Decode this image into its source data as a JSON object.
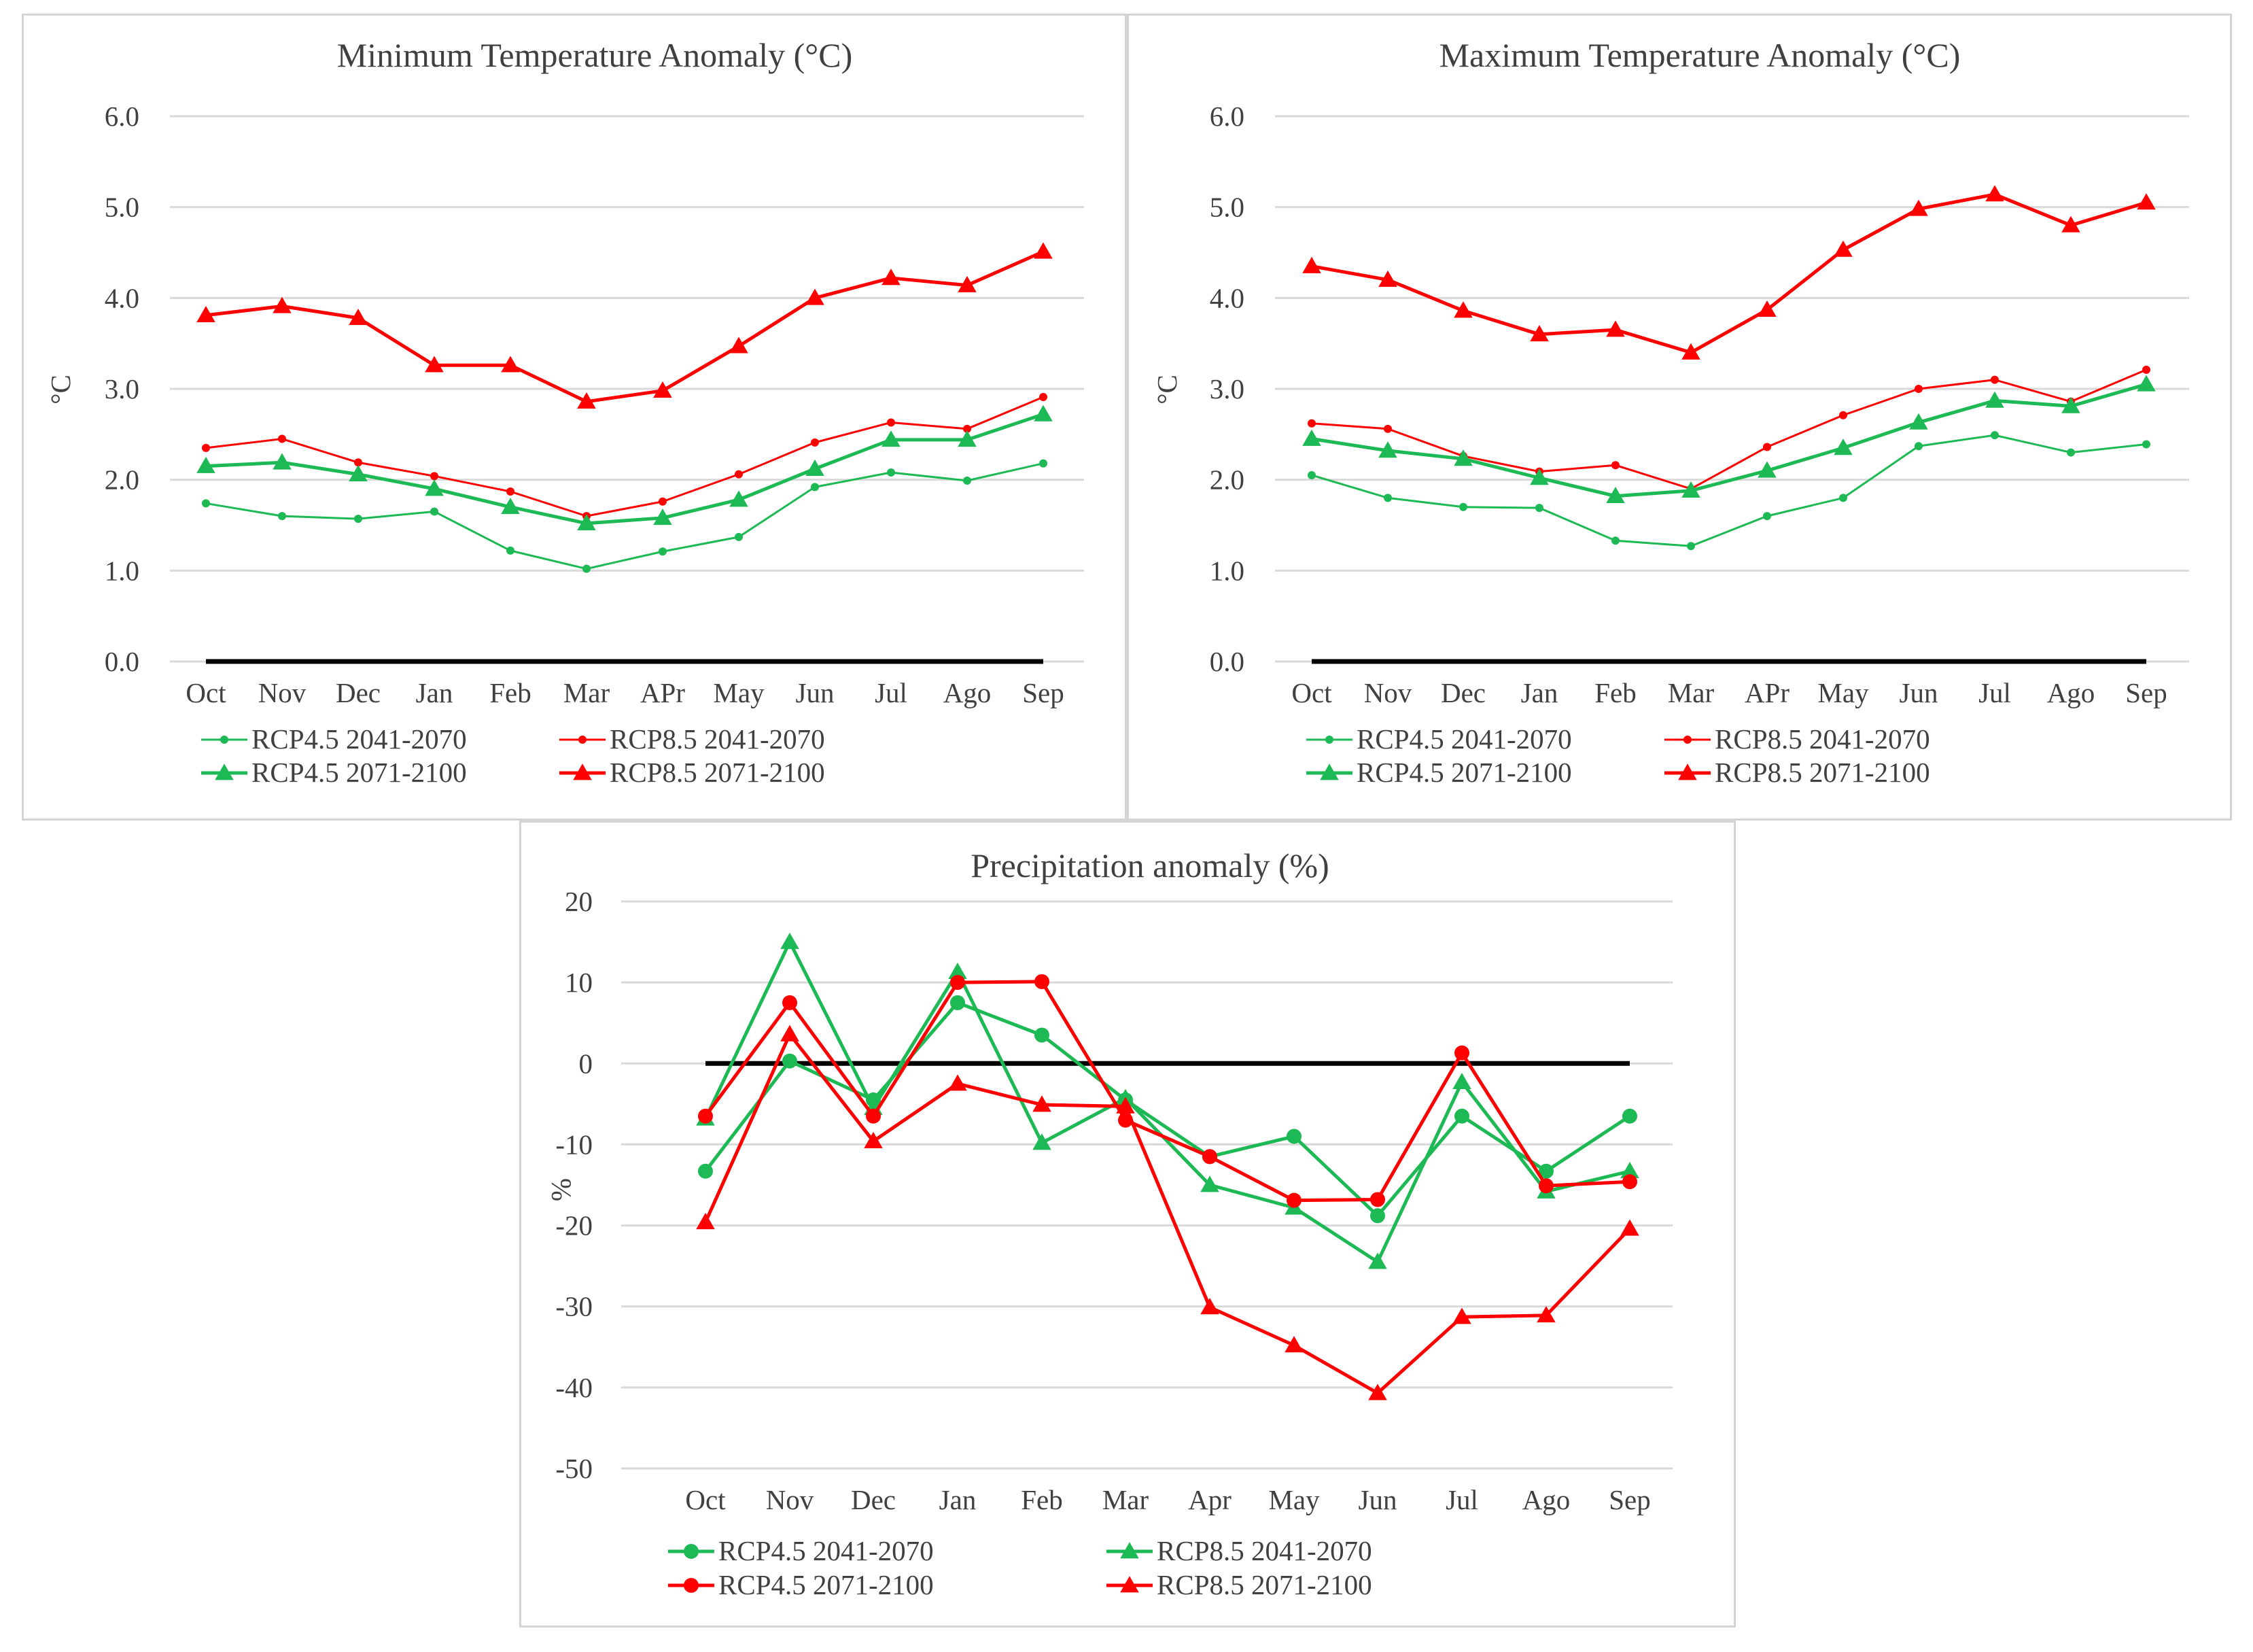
{
  "charts": [
    {
      "id": "min",
      "type": "line",
      "title": "Minimum Temperature Anomaly (°C)",
      "ylabel": "°C",
      "ylim": [
        0,
        6
      ],
      "ytick_labels": [
        "0.0",
        "1.0",
        "2.0",
        "3.0",
        "4.0",
        "5.0",
        "6.0"
      ],
      "categories": [
        "Oct",
        "Nov",
        "Dec",
        "Jan",
        "Feb",
        "Mar",
        "APr",
        "May",
        "Jun",
        "Jul",
        "Ago",
        "Sep"
      ],
      "baseline": 0,
      "series": [
        {
          "name": "RCP4.5 2041-2070",
          "color": "#1db954",
          "marker": "circle",
          "values": [
            1.74,
            1.6,
            1.57,
            1.65,
            1.22,
            1.02,
            1.21,
            1.37,
            1.92,
            2.08,
            1.99,
            2.18
          ]
        },
        {
          "name": "RCP8.5 2041-2070",
          "color": "#ff0000",
          "marker": "circle",
          "values": [
            2.35,
            2.45,
            2.19,
            2.04,
            1.87,
            1.6,
            1.76,
            2.06,
            2.41,
            2.63,
            2.56,
            2.91
          ]
        },
        {
          "name": "RCP4.5 2071-2100",
          "color": "#1db954",
          "marker": "triangle",
          "values": [
            2.15,
            2.19,
            2.06,
            1.9,
            1.7,
            1.52,
            1.58,
            1.78,
            2.12,
            2.44,
            2.44,
            2.72
          ]
        },
        {
          "name": "RCP8.5 2071-2100",
          "color": "#ff0000",
          "marker": "triangle",
          "values": [
            3.81,
            3.91,
            3.78,
            3.26,
            3.26,
            2.86,
            2.98,
            3.47,
            4.0,
            4.22,
            4.14,
            4.51
          ]
        }
      ]
    },
    {
      "id": "max",
      "type": "line",
      "title": "Maximum Temperature Anomaly (°C)",
      "ylabel": "°C",
      "ylim": [
        0,
        6
      ],
      "ytick_labels": [
        "0.0",
        "1.0",
        "2.0",
        "3.0",
        "4.0",
        "5.0",
        "6.0"
      ],
      "categories": [
        "Oct",
        "Nov",
        "Dec",
        "Jan",
        "Feb",
        "Mar",
        "APr",
        "May",
        "Jun",
        "Jul",
        "Ago",
        "Sep"
      ],
      "baseline": 0,
      "series": [
        {
          "name": "RCP4.5 2041-2070",
          "color": "#1db954",
          "marker": "circle",
          "values": [
            2.05,
            1.8,
            1.7,
            1.69,
            1.33,
            1.27,
            1.6,
            1.8,
            2.37,
            2.49,
            2.3,
            2.39
          ]
        },
        {
          "name": "RCP8.5 2041-2070",
          "color": "#ff0000",
          "marker": "circle",
          "values": [
            2.62,
            2.56,
            2.26,
            2.09,
            2.16,
            1.9,
            2.36,
            2.71,
            3.0,
            3.1,
            2.86,
            3.21
          ]
        },
        {
          "name": "RCP4.5 2071-2100",
          "color": "#1db954",
          "marker": "triangle",
          "values": [
            2.45,
            2.32,
            2.23,
            2.02,
            1.82,
            1.88,
            2.1,
            2.35,
            2.63,
            2.87,
            2.81,
            3.05
          ]
        },
        {
          "name": "RCP8.5 2071-2100",
          "color": "#ff0000",
          "marker": "triangle",
          "values": [
            4.35,
            4.2,
            3.86,
            3.6,
            3.65,
            3.4,
            3.87,
            4.53,
            4.98,
            5.14,
            4.8,
            5.05
          ]
        }
      ]
    },
    {
      "id": "precip",
      "type": "line",
      "title": "Precipitation anomaly (%)",
      "ylabel": "%",
      "ylim": [
        -50,
        20
      ],
      "ytick_labels": [
        "-50",
        "-40",
        "-30",
        "-20",
        "-10",
        "0",
        "10",
        "20"
      ],
      "categories": [
        "Oct",
        "Nov",
        "Dec",
        "Jan",
        "Feb",
        "Mar",
        "Apr",
        "May",
        "Jun",
        "Jul",
        "Ago",
        "Sep"
      ],
      "baseline": 0,
      "series": [
        {
          "name": "RCP4.5 2041-2070",
          "color": "#1db954",
          "marker": "circle",
          "values": [
            -13.3,
            0.3,
            -4.5,
            7.5,
            3.5,
            -4.5,
            -11.5,
            -9.0,
            -18.8,
            -6.5,
            -13.3,
            -6.5
          ]
        },
        {
          "name": "RCP8.5 2041-2070",
          "color": "#1db954",
          "marker": "triangle",
          "values": [
            -6.8,
            15.0,
            -5.5,
            11.3,
            -9.8,
            -4.3,
            -15.0,
            -17.8,
            -24.5,
            -2.3,
            -15.8,
            -13.3
          ]
        },
        {
          "name": "RCP4.5 2071-2100",
          "color": "#ff0000",
          "marker": "circle",
          "values": [
            -6.5,
            7.5,
            -6.5,
            10.0,
            10.1,
            -7.0,
            -11.5,
            -16.9,
            -16.8,
            1.3,
            -15.1,
            -14.6
          ]
        },
        {
          "name": "RCP8.5 2071-2100",
          "color": "#ff0000",
          "marker": "triangle",
          "values": [
            -19.6,
            3.6,
            -9.6,
            -2.5,
            -5.1,
            -5.3,
            -30.1,
            -34.8,
            -40.7,
            -31.3,
            -31.1,
            -20.4
          ]
        }
      ]
    }
  ]
}
